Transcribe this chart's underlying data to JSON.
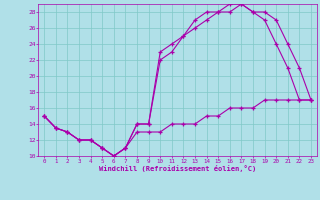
{
  "title": "",
  "xlabel": "Windchill (Refroidissement éolien,°C)",
  "background_color": "#b0e0e8",
  "grid_color": "#80c8c8",
  "line_color": "#aa00aa",
  "xlim": [
    -0.5,
    23.5
  ],
  "ylim": [
    10,
    29
  ],
  "yticks": [
    10,
    12,
    14,
    16,
    18,
    20,
    22,
    24,
    26,
    28
  ],
  "xticks": [
    0,
    1,
    2,
    3,
    4,
    5,
    6,
    7,
    8,
    9,
    10,
    11,
    12,
    13,
    14,
    15,
    16,
    17,
    18,
    19,
    20,
    21,
    22,
    23
  ],
  "line1_x": [
    0,
    1,
    2,
    3,
    4,
    5,
    6,
    7,
    8,
    9,
    10,
    11,
    12,
    13,
    14,
    15,
    16,
    17,
    18,
    19,
    20,
    21,
    22,
    23
  ],
  "line1_y": [
    15,
    13.5,
    13,
    12,
    12,
    11,
    10,
    11,
    14,
    14,
    23,
    24,
    25,
    27,
    28,
    28,
    29,
    29,
    28,
    27,
    24,
    21,
    17,
    17
  ],
  "line2_x": [
    0,
    1,
    2,
    3,
    4,
    5,
    6,
    7,
    8,
    9,
    10,
    11,
    12,
    13,
    14,
    15,
    16,
    17,
    18,
    19,
    20,
    21,
    22,
    23
  ],
  "line2_y": [
    15,
    13.5,
    13,
    12,
    12,
    11,
    10,
    11,
    14,
    14,
    22,
    23,
    25,
    26,
    27,
    28,
    28,
    29,
    28,
    28,
    27,
    24,
    21,
    17
  ],
  "line3_x": [
    0,
    1,
    2,
    3,
    4,
    5,
    6,
    7,
    8,
    9,
    10,
    11,
    12,
    13,
    14,
    15,
    16,
    17,
    18,
    19,
    20,
    21,
    22,
    23
  ],
  "line3_y": [
    15,
    13.5,
    13,
    12,
    12,
    11,
    10,
    11,
    13,
    13,
    13,
    14,
    14,
    14,
    15,
    15,
    16,
    16,
    16,
    17,
    17,
    17,
    17,
    17
  ]
}
